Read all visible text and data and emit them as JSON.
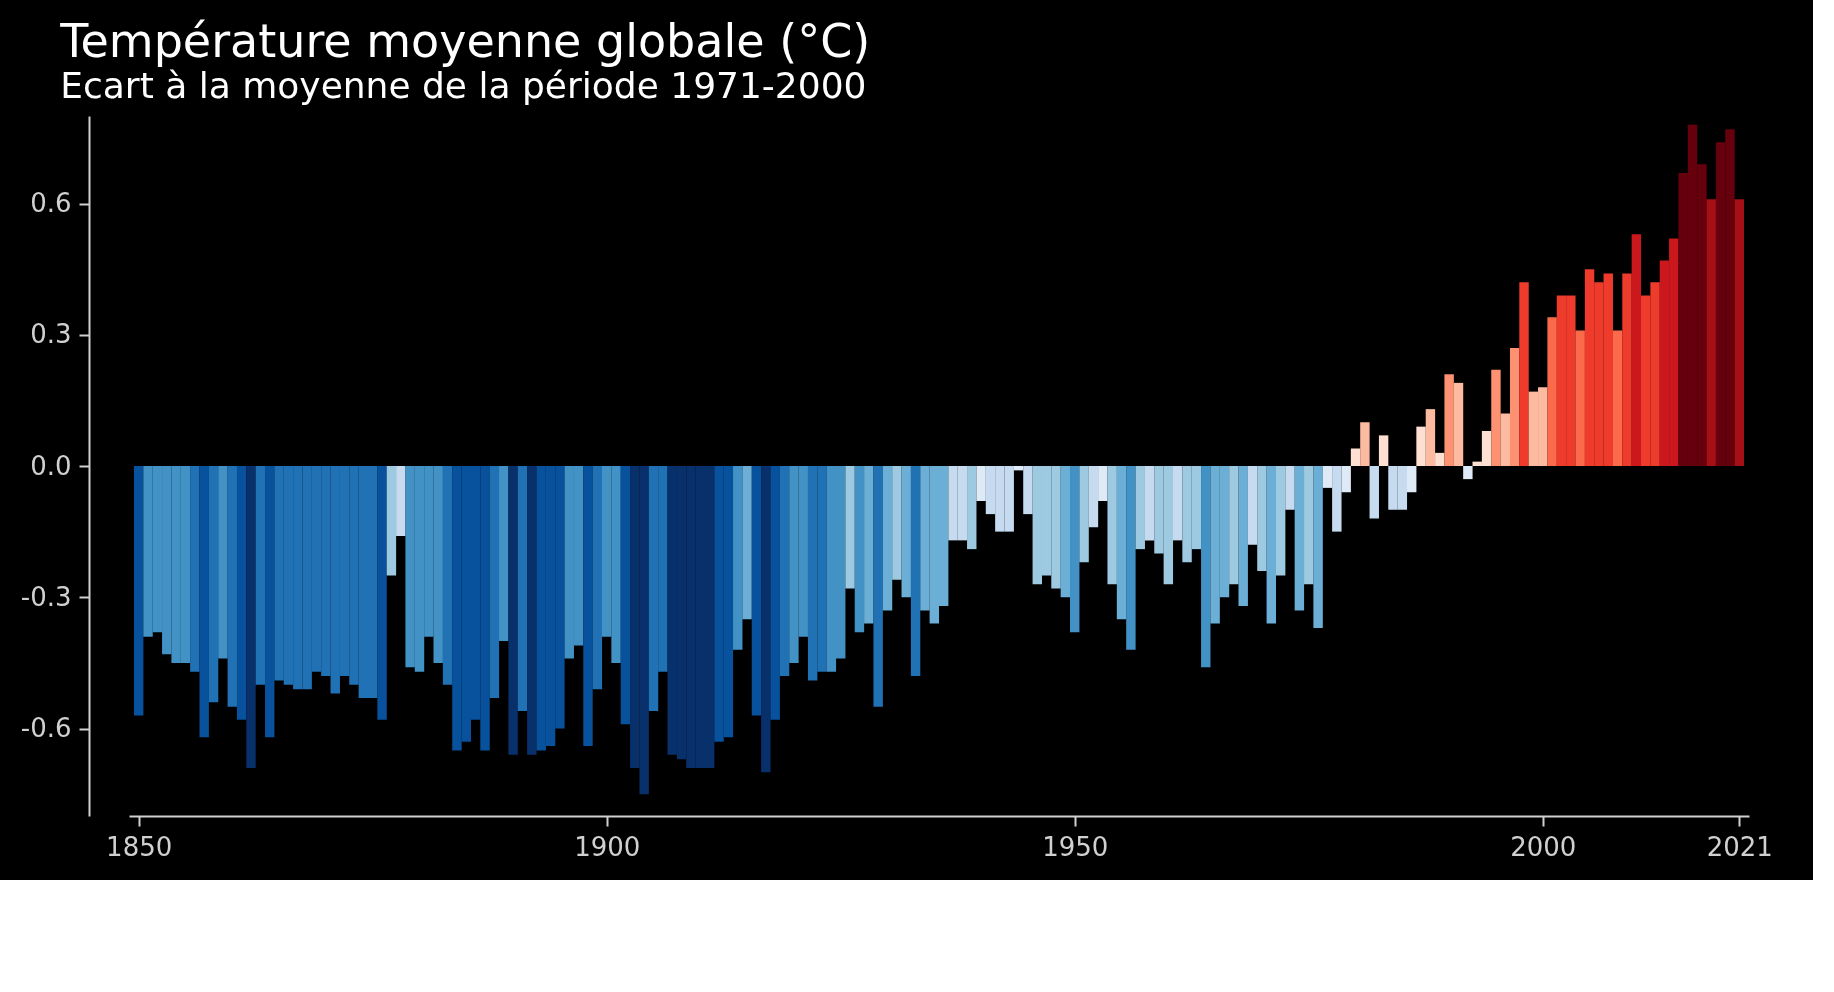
{
  "chart_data": {
    "type": "bar",
    "title": "Température moyenne globale (°C)",
    "subtitle": "Ecart à la moyenne de la période 1971-2000",
    "x": [
      1850,
      1851,
      1852,
      1853,
      1854,
      1855,
      1856,
      1857,
      1858,
      1859,
      1860,
      1861,
      1862,
      1863,
      1864,
      1865,
      1866,
      1867,
      1868,
      1869,
      1870,
      1871,
      1872,
      1873,
      1874,
      1875,
      1876,
      1877,
      1878,
      1879,
      1880,
      1881,
      1882,
      1883,
      1884,
      1885,
      1886,
      1887,
      1888,
      1889,
      1890,
      1891,
      1892,
      1893,
      1894,
      1895,
      1896,
      1897,
      1898,
      1899,
      1900,
      1901,
      1902,
      1903,
      1904,
      1905,
      1906,
      1907,
      1908,
      1909,
      1910,
      1911,
      1912,
      1913,
      1914,
      1915,
      1916,
      1917,
      1918,
      1919,
      1920,
      1921,
      1922,
      1923,
      1924,
      1925,
      1926,
      1927,
      1928,
      1929,
      1930,
      1931,
      1932,
      1933,
      1934,
      1935,
      1936,
      1937,
      1938,
      1939,
      1940,
      1941,
      1942,
      1943,
      1944,
      1945,
      1946,
      1947,
      1948,
      1949,
      1950,
      1951,
      1952,
      1953,
      1954,
      1955,
      1956,
      1957,
      1958,
      1959,
      1960,
      1961,
      1962,
      1963,
      1964,
      1965,
      1966,
      1967,
      1968,
      1969,
      1970,
      1971,
      1972,
      1973,
      1974,
      1975,
      1976,
      1977,
      1978,
      1979,
      1980,
      1981,
      1982,
      1983,
      1984,
      1985,
      1986,
      1987,
      1988,
      1989,
      1990,
      1991,
      1992,
      1993,
      1994,
      1995,
      1996,
      1997,
      1998,
      1999,
      2000,
      2001,
      2002,
      2003,
      2004,
      2005,
      2006,
      2007,
      2008,
      2009,
      2010,
      2011,
      2012,
      2013,
      2014,
      2015,
      2016,
      2017,
      2018,
      2019,
      2020,
      2021
    ],
    "values": [
      -0.57,
      -0.39,
      -0.38,
      -0.43,
      -0.45,
      -0.45,
      -0.47,
      -0.62,
      -0.54,
      -0.44,
      -0.55,
      -0.58,
      -0.69,
      -0.5,
      -0.62,
      -0.49,
      -0.5,
      -0.51,
      -0.51,
      -0.47,
      -0.48,
      -0.52,
      -0.48,
      -0.5,
      -0.53,
      -0.53,
      -0.58,
      -0.25,
      -0.16,
      -0.46,
      -0.47,
      -0.39,
      -0.45,
      -0.5,
      -0.65,
      -0.63,
      -0.58,
      -0.65,
      -0.53,
      -0.4,
      -0.66,
      -0.56,
      -0.66,
      -0.65,
      -0.64,
      -0.6,
      -0.44,
      -0.41,
      -0.64,
      -0.51,
      -0.39,
      -0.45,
      -0.59,
      -0.69,
      -0.75,
      -0.56,
      -0.47,
      -0.66,
      -0.67,
      -0.69,
      -0.69,
      -0.69,
      -0.63,
      -0.62,
      -0.42,
      -0.35,
      -0.57,
      -0.7,
      -0.58,
      -0.48,
      -0.45,
      -0.39,
      -0.49,
      -0.47,
      -0.47,
      -0.44,
      -0.28,
      -0.38,
      -0.36,
      -0.55,
      -0.33,
      -0.26,
      -0.3,
      -0.48,
      -0.33,
      -0.36,
      -0.32,
      -0.17,
      -0.17,
      -0.19,
      -0.08,
      -0.11,
      -0.15,
      -0.15,
      -0.01,
      -0.11,
      -0.27,
      -0.25,
      -0.28,
      -0.3,
      -0.38,
      -0.22,
      -0.14,
      -0.08,
      -0.27,
      -0.35,
      -0.42,
      -0.19,
      -0.17,
      -0.2,
      -0.27,
      -0.17,
      -0.22,
      -0.19,
      -0.46,
      -0.36,
      -0.3,
      -0.27,
      -0.32,
      -0.18,
      -0.24,
      -0.36,
      -0.25,
      -0.1,
      -0.33,
      -0.27,
      -0.37,
      -0.05,
      -0.15,
      -0.06,
      0.04,
      0.1,
      -0.12,
      0.07,
      -0.1,
      -0.1,
      -0.06,
      0.09,
      0.13,
      0.03,
      0.21,
      0.19,
      -0.03,
      0.01,
      0.08,
      0.22,
      0.12,
      0.27,
      0.42,
      0.17,
      0.18,
      0.34,
      0.39,
      0.39,
      0.31,
      0.45,
      0.42,
      0.44,
      0.31,
      0.44,
      0.53,
      0.39,
      0.42,
      0.47,
      0.52,
      0.67,
      0.78,
      0.69,
      0.61,
      0.74,
      0.77,
      0.61
    ],
    "colors": [
      "#08519c",
      "#4292c6",
      "#4292c6",
      "#4292c6",
      "#4292c6",
      "#4292c6",
      "#2171b5",
      "#08519c",
      "#2171b5",
      "#4292c6",
      "#2171b5",
      "#08519c",
      "#08306b",
      "#2171b5",
      "#08519c",
      "#2171b5",
      "#2171b5",
      "#2171b5",
      "#2171b5",
      "#2171b5",
      "#2171b5",
      "#2171b5",
      "#2171b5",
      "#2171b5",
      "#2171b5",
      "#2171b5",
      "#08519c",
      "#9ecae1",
      "#c6dbef",
      "#4292c6",
      "#4292c6",
      "#4292c6",
      "#4292c6",
      "#2171b5",
      "#08519c",
      "#08519c",
      "#08519c",
      "#08519c",
      "#2171b5",
      "#4292c6",
      "#08306b",
      "#2171b5",
      "#08306b",
      "#08519c",
      "#08519c",
      "#08519c",
      "#4292c6",
      "#4292c6",
      "#08519c",
      "#2171b5",
      "#4292c6",
      "#4292c6",
      "#08519c",
      "#08306b",
      "#08306b",
      "#2171b5",
      "#2171b5",
      "#08306b",
      "#08306b",
      "#08306b",
      "#08306b",
      "#08306b",
      "#08519c",
      "#08519c",
      "#4292c6",
      "#6baed6",
      "#08519c",
      "#08306b",
      "#08519c",
      "#2171b5",
      "#4292c6",
      "#4292c6",
      "#2171b5",
      "#2171b5",
      "#4292c6",
      "#4292c6",
      "#9ecae1",
      "#4292c6",
      "#6baed6",
      "#2171b5",
      "#6baed6",
      "#9ecae1",
      "#6baed6",
      "#2171b5",
      "#6baed6",
      "#6baed6",
      "#6baed6",
      "#c6dbef",
      "#c6dbef",
      "#9ecae1",
      "#deebf7",
      "#c6dbef",
      "#c6dbef",
      "#c6dbef",
      "#deebf7",
      "#c6dbef",
      "#9ecae1",
      "#9ecae1",
      "#9ecae1",
      "#6baed6",
      "#4292c6",
      "#9ecae1",
      "#c6dbef",
      "#deebf7",
      "#9ecae1",
      "#6baed6",
      "#4292c6",
      "#9ecae1",
      "#c6dbef",
      "#9ecae1",
      "#9ecae1",
      "#c6dbef",
      "#9ecae1",
      "#9ecae1",
      "#4292c6",
      "#6baed6",
      "#6baed6",
      "#9ecae1",
      "#6baed6",
      "#c6dbef",
      "#9ecae1",
      "#6baed6",
      "#9ecae1",
      "#c6dbef",
      "#6baed6",
      "#9ecae1",
      "#6baed6",
      "#deebf7",
      "#c6dbef",
      "#deebf7",
      "#fee0d2",
      "#fcbba1",
      "#c6dbef",
      "#fee0d2",
      "#c6dbef",
      "#c6dbef",
      "#deebf7",
      "#fee0d2",
      "#fcbba1",
      "#fee0d2",
      "#fc9272",
      "#fcbba1",
      "#deebf7",
      "#fee0d2",
      "#fee0d2",
      "#fc9272",
      "#fcbba1",
      "#fc9272",
      "#ef3b2c",
      "#fcbba1",
      "#fcbba1",
      "#fb6a4a",
      "#ef3b2c",
      "#ef3b2c",
      "#fb6a4a",
      "#ef3b2c",
      "#ef3b2c",
      "#ef3b2c",
      "#fb6a4a",
      "#ef3b2c",
      "#cb181d",
      "#ef3b2c",
      "#ef3b2c",
      "#cb181d",
      "#cb181d",
      "#67000d",
      "#67000d",
      "#67000d",
      "#a50f15",
      "#67000d",
      "#67000d",
      "#a50f15"
    ],
    "xlim": [
      1849.5,
      2021.5
    ],
    "xticks": [
      1850,
      1900,
      1950,
      2000,
      2021
    ],
    "ylim": [
      -0.8,
      0.8
    ],
    "yticks": [
      -0.6,
      -0.3,
      {
        "value": 0,
        "label": "0.0"
      },
      0.3,
      0.6
    ]
  }
}
